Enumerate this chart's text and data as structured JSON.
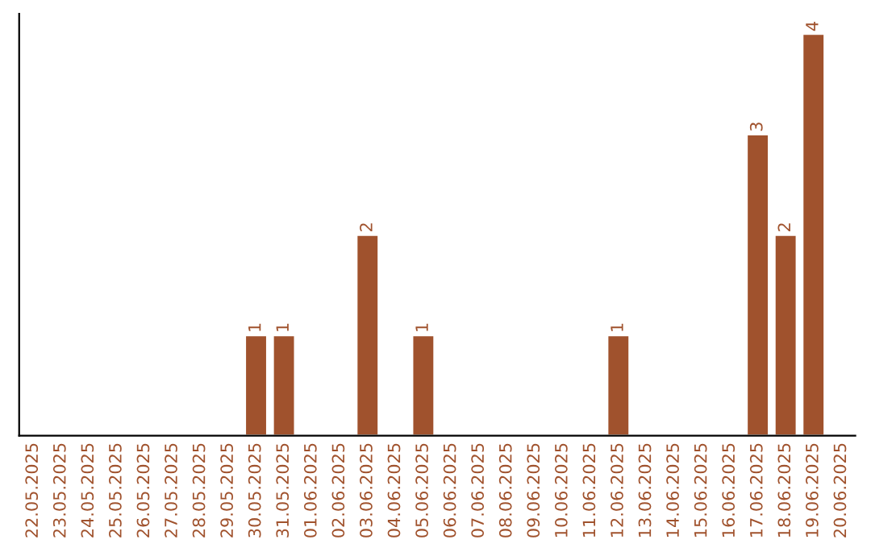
{
  "chart_data": {
    "type": "bar",
    "categories": [
      "22.05.2025",
      "23.05.2025",
      "24.05.2025",
      "25.05.2025",
      "26.05.2025",
      "27.05.2025",
      "28.05.2025",
      "29.05.2025",
      "30.05.2025",
      "31.05.2025",
      "01.06.2025",
      "02.06.2025",
      "03.06.2025",
      "04.06.2025",
      "05.06.2025",
      "06.06.2025",
      "07.06.2025",
      "08.06.2025",
      "09.06.2025",
      "10.06.2025",
      "11.06.2025",
      "12.06.2025",
      "13.06.2025",
      "14.06.2025",
      "15.06.2025",
      "16.06.2025",
      "17.06.2025",
      "18.06.2025",
      "19.06.2025",
      "20.06.2025"
    ],
    "values": [
      0,
      0,
      0,
      0,
      0,
      0,
      0,
      0,
      1,
      1,
      0,
      0,
      2,
      0,
      1,
      0,
      0,
      0,
      0,
      0,
      0,
      1,
      0,
      0,
      0,
      0,
      3,
      2,
      4,
      0
    ],
    "value_labels": [
      null,
      null,
      null,
      null,
      null,
      null,
      null,
      null,
      "1",
      "1",
      null,
      null,
      "2",
      null,
      "1",
      null,
      null,
      null,
      null,
      null,
      null,
      "1",
      null,
      null,
      null,
      null,
      "3",
      "2",
      "4",
      null
    ],
    "color": "#a0522d",
    "tick_labels": "x",
    "grid": false,
    "legend": false
  }
}
